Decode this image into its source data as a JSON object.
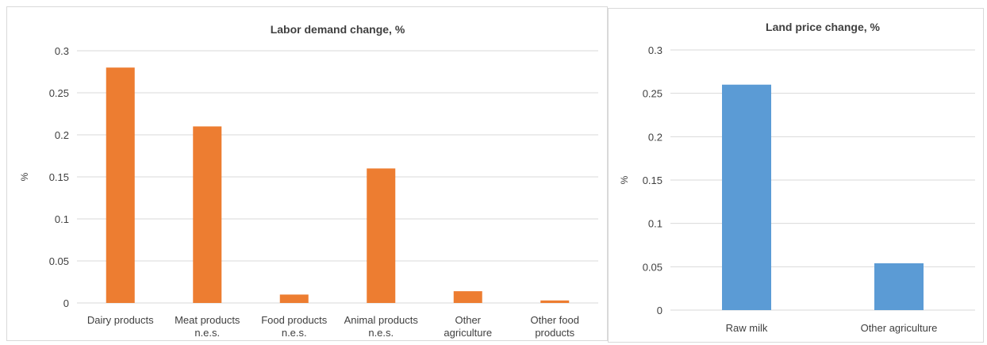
{
  "chart_data": [
    {
      "type": "bar",
      "title": "Labor demand change, %",
      "ylabel": "%",
      "xlabel": "",
      "ylim": [
        0,
        0.3
      ],
      "yticks": [
        "0",
        "0.05",
        "0.1",
        "0.15",
        "0.2",
        "0.25",
        "0.3"
      ],
      "grid": true,
      "legend": "none",
      "color": "#ed7d31",
      "categories": [
        [
          "Dairy products"
        ],
        [
          "Meat products",
          "n.e.s."
        ],
        [
          "Food products",
          "n.e.s."
        ],
        [
          "Animal products",
          "n.e.s."
        ],
        [
          "Other",
          "agriculture"
        ],
        [
          "Other food",
          "products"
        ]
      ],
      "values": [
        0.28,
        0.21,
        0.01,
        0.16,
        0.014,
        0.003
      ]
    },
    {
      "type": "bar",
      "title": "Land price change, %",
      "ylabel": "%",
      "xlabel": "",
      "ylim": [
        0,
        0.3
      ],
      "yticks": [
        "0",
        "0.05",
        "0.1",
        "0.15",
        "0.2",
        "0.25",
        "0.3"
      ],
      "grid": true,
      "legend": "none",
      "color": "#5b9bd5",
      "categories": [
        [
          "Raw milk"
        ],
        [
          "Other agriculture"
        ]
      ],
      "values": [
        0.26,
        0.054
      ]
    }
  ]
}
